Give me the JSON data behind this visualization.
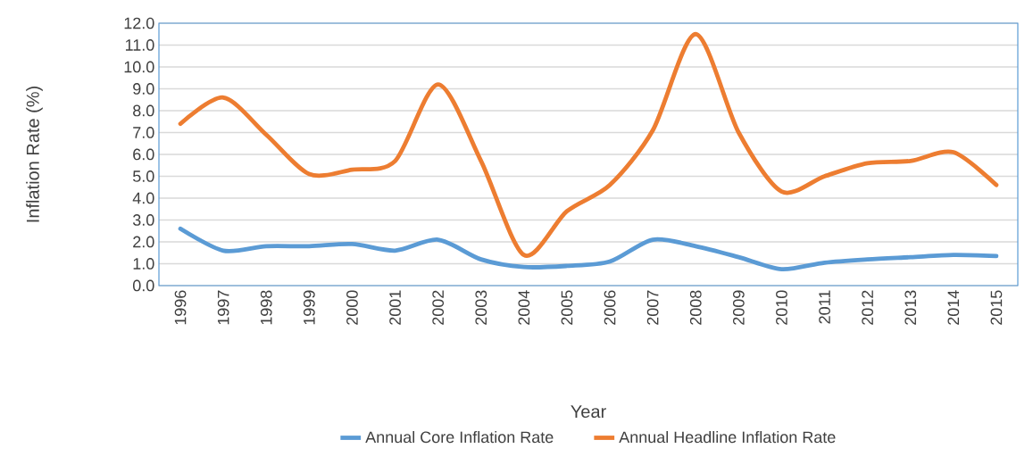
{
  "chart_data": {
    "type": "line",
    "xlabel": "Year",
    "ylabel": "Inflation Rate (%)",
    "categories": [
      "1996",
      "1997",
      "1998",
      "1999",
      "2000",
      "2001",
      "2002",
      "2003",
      "2004",
      "2005",
      "2006",
      "2007",
      "2008",
      "2009",
      "2010",
      "2011",
      "2012",
      "2013",
      "2014",
      "2015"
    ],
    "series": [
      {
        "name": "Annual Core Inflation Rate",
        "color": "#5b9bd5",
        "values": [
          2.6,
          1.6,
          1.8,
          1.8,
          1.9,
          1.6,
          2.1,
          1.2,
          0.85,
          0.9,
          1.1,
          2.1,
          1.8,
          1.3,
          0.75,
          1.05,
          1.2,
          1.3,
          1.4,
          1.35
        ]
      },
      {
        "name": "Annual Headline Inflation Rate",
        "color": "#ed7d31",
        "values": [
          7.4,
          8.6,
          6.9,
          5.1,
          5.3,
          5.7,
          9.2,
          5.7,
          1.4,
          3.4,
          4.6,
          7.1,
          11.5,
          7.0,
          4.3,
          5.0,
          5.6,
          5.7,
          6.1,
          4.6
        ]
      }
    ],
    "ylim": [
      0,
      12
    ],
    "yticks": [
      {
        "value": 0,
        "label": "0.0"
      },
      {
        "value": 1,
        "label": "1.0"
      },
      {
        "value": 2,
        "label": "2.0"
      },
      {
        "value": 3,
        "label": "3.0"
      },
      {
        "value": 4,
        "label": "4.0"
      },
      {
        "value": 5,
        "label": "5.0"
      },
      {
        "value": 6,
        "label": "6.0"
      },
      {
        "value": 7,
        "label": "7.0"
      },
      {
        "value": 8,
        "label": "8.0"
      },
      {
        "value": 9,
        "label": "9.0"
      },
      {
        "value": 10,
        "label": "10.0"
      },
      {
        "value": 11,
        "label": "11.0"
      },
      {
        "value": 12,
        "label": "12.0"
      }
    ],
    "grid": "y",
    "legend": "bottom",
    "marker": "none",
    "line_style": "solid"
  }
}
